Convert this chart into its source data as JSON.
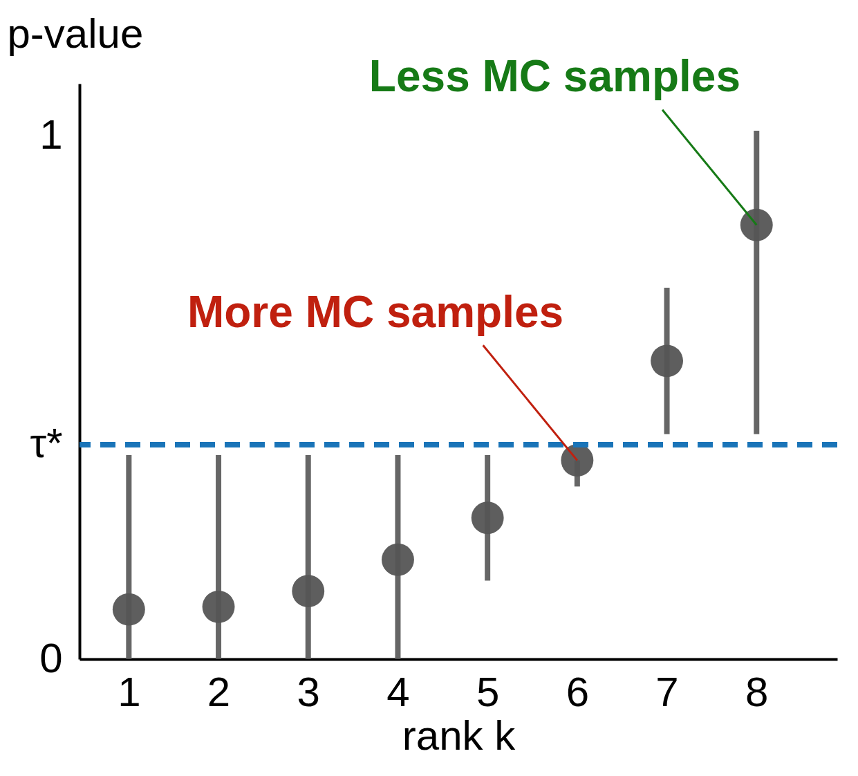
{
  "chart_data": {
    "type": "scatter",
    "xlabel": "rank k",
    "ylabel": "p-value",
    "x": [
      1,
      2,
      3,
      4,
      5,
      6,
      7,
      8
    ],
    "series": [
      {
        "color": "#555555",
        "values": [
          0.095,
          0.1,
          0.13,
          0.19,
          0.27,
          0.38,
          0.57,
          0.83
        ],
        "errors": [
          [
            0,
            0.39
          ],
          [
            0,
            0.39
          ],
          [
            0,
            0.39
          ],
          [
            0,
            0.39
          ],
          [
            0.15,
            0.39
          ],
          [
            0.33,
            0.38
          ],
          [
            0.43,
            0.71
          ],
          [
            0.43,
            1.01
          ]
        ]
      }
    ],
    "xlim": [
      0.45,
      8.9
    ],
    "xticks": [
      1,
      2,
      3,
      4,
      5,
      6,
      7,
      8
    ],
    "ylim": [
      0,
      1.1
    ],
    "yticks": [
      0,
      {
        "value": 0.41,
        "label": "τ*"
      },
      1
    ],
    "ref_lines": [
      {
        "axis": "y",
        "value": 0.41,
        "color": "#1a74b8",
        "line_style": "dashed"
      }
    ],
    "annotations": [
      {
        "text": "Less MC samples",
        "x": 8,
        "y": 0.83
      },
      {
        "text": "More MC samples",
        "x": 6,
        "y": 0.38
      }
    ],
    "marker": "circle",
    "grid": false
  }
}
